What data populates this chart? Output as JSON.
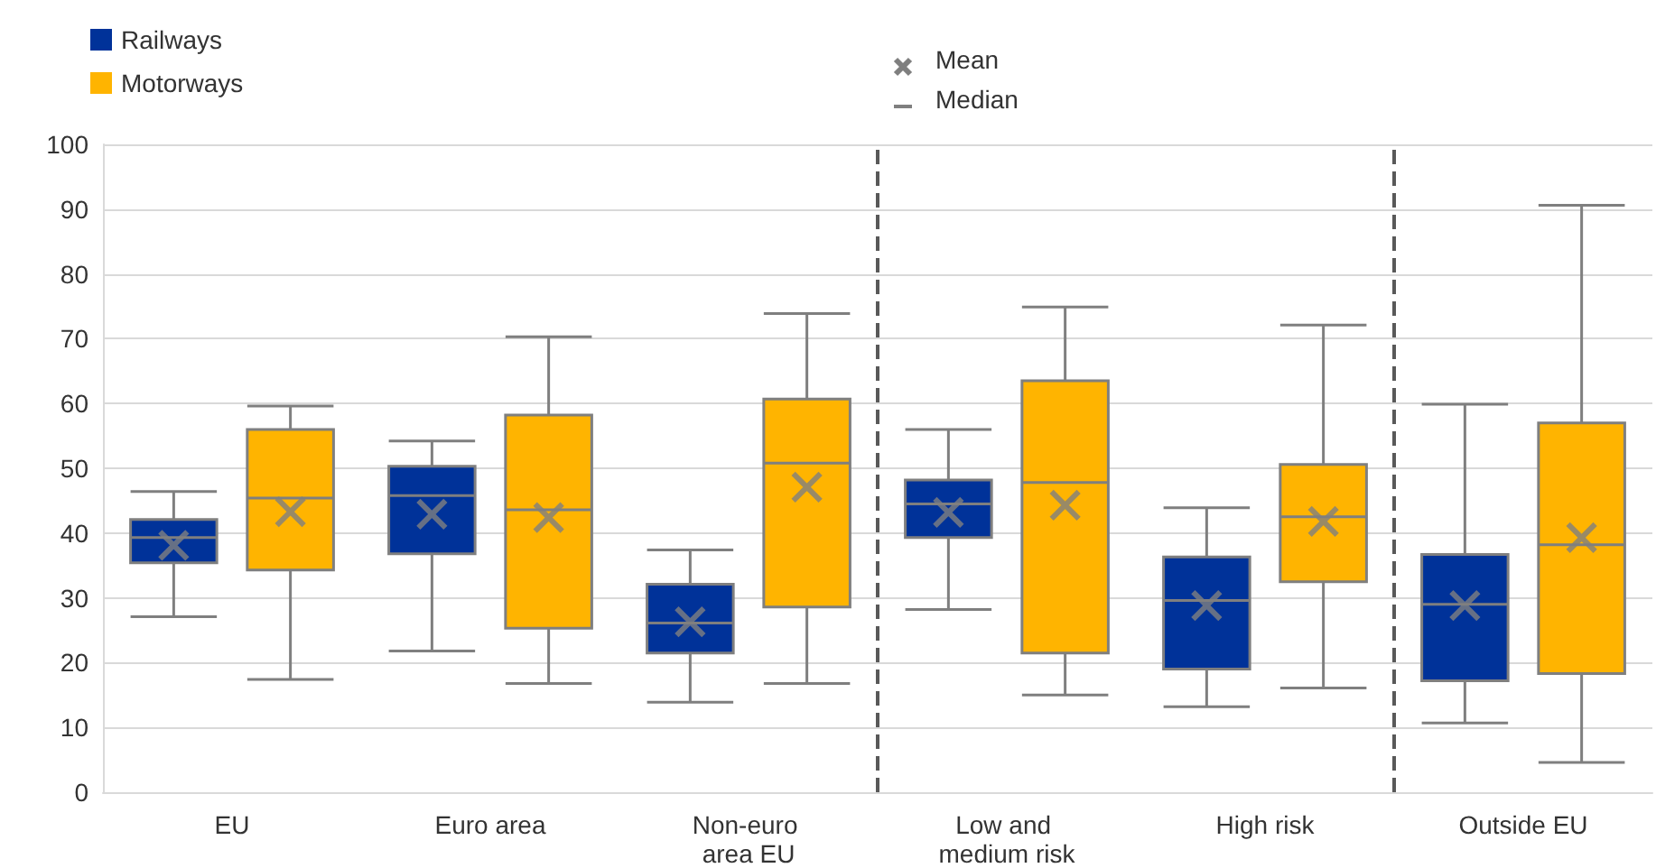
{
  "chart_data": {
    "type": "box",
    "categories": [
      "EU",
      "Euro area",
      "Non-euro area EU",
      "Low and medium risk",
      "High risk",
      "Outside EU"
    ],
    "series": [
      {
        "name": "Railways",
        "color": "#003299",
        "boxes": [
          {
            "low": 27.1,
            "q1": 35.4,
            "median": 39.3,
            "q3": 42.1,
            "high": 46.4,
            "mean": 38.1
          },
          {
            "low": 21.8,
            "q1": 36.8,
            "median": 45.8,
            "q3": 50.3,
            "high": 54.2,
            "mean": 42.9
          },
          {
            "low": 13.9,
            "q1": 21.5,
            "median": 26.1,
            "q3": 32.1,
            "high": 37.4,
            "mean": 26.3
          },
          {
            "low": 28.2,
            "q1": 39.3,
            "median": 44.5,
            "q3": 48.2,
            "high": 56.0,
            "mean": 43.2
          },
          {
            "low": 13.2,
            "q1": 19.0,
            "median": 29.6,
            "q3": 36.3,
            "high": 43.9,
            "mean": 28.8
          },
          {
            "low": 10.7,
            "q1": 17.2,
            "median": 29.0,
            "q3": 36.7,
            "high": 59.9,
            "mean": 28.8
          }
        ]
      },
      {
        "name": "Motorways",
        "color": "#ffb400",
        "boxes": [
          {
            "low": 17.4,
            "q1": 34.3,
            "median": 45.4,
            "q3": 56.0,
            "high": 59.6,
            "mean": 43.3
          },
          {
            "low": 16.8,
            "q1": 25.3,
            "median": 43.6,
            "q3": 58.2,
            "high": 70.3,
            "mean": 42.4
          },
          {
            "low": 16.8,
            "q1": 28.6,
            "median": 50.8,
            "q3": 60.7,
            "high": 73.9,
            "mean": 47.1
          },
          {
            "low": 15.0,
            "q1": 21.5,
            "median": 47.8,
            "q3": 63.5,
            "high": 74.9,
            "mean": 44.3
          },
          {
            "low": 16.1,
            "q1": 32.5,
            "median": 42.5,
            "q3": 50.6,
            "high": 72.1,
            "mean": 41.8
          },
          {
            "low": 4.6,
            "q1": 18.3,
            "median": 38.2,
            "q3": 57.0,
            "high": 90.6,
            "mean": 39.3
          }
        ]
      }
    ],
    "ylim": [
      0,
      100
    ],
    "yticks": [
      0,
      10,
      20,
      30,
      40,
      50,
      60,
      70,
      80,
      90,
      100
    ],
    "grid": "y",
    "legend": "top left",
    "marker": "cross",
    "annotations": [
      "Mean",
      "Median"
    ]
  }
}
